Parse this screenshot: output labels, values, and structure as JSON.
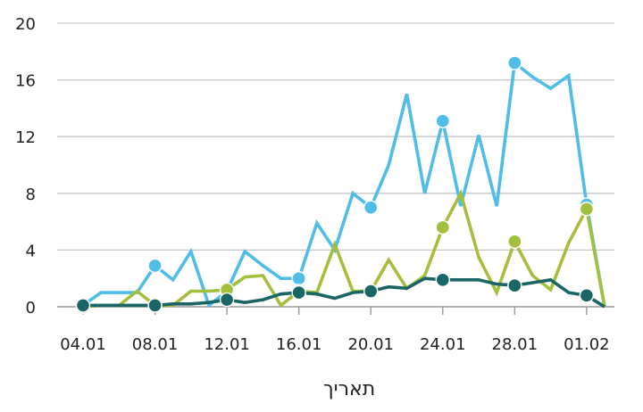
{
  "chart_data": {
    "type": "line",
    "title": "",
    "xlabel": "תאריך",
    "ylabel": "",
    "ylim": [
      0,
      20
    ],
    "y_ticks": [
      0,
      4,
      8,
      12,
      16,
      20
    ],
    "x_ticks": [
      "04.01",
      "08.01",
      "12.01",
      "16.01",
      "20.01",
      "24.01",
      "28.01",
      "01.02"
    ],
    "grid": true,
    "legend": "none",
    "x": [
      "04.01",
      "05.01",
      "06.01",
      "07.01",
      "08.01",
      "09.01",
      "10.01",
      "11.01",
      "12.01",
      "13.01",
      "14.01",
      "15.01",
      "16.01",
      "17.01",
      "18.01",
      "19.01",
      "20.01",
      "21.01",
      "22.01",
      "23.01",
      "24.01",
      "25.01",
      "26.01",
      "27.01",
      "28.01",
      "29.01",
      "30.01",
      "31.01",
      "01.02",
      "02.02"
    ],
    "series": [
      {
        "color": "#4fbde8",
        "values": [
          0.1,
          1.0,
          1.0,
          1.0,
          2.9,
          1.9,
          3.9,
          0.1,
          1.1,
          3.9,
          2.9,
          2.0,
          2.0,
          5.9,
          4.0,
          8.0,
          7.0,
          10.0,
          15.0,
          8.0,
          13.1,
          7.1,
          12.1,
          7.1,
          17.2,
          16.2,
          15.4,
          16.3,
          7.2,
          0.0
        ],
        "markers": [
          0,
          4,
          8,
          12,
          16,
          20,
          24,
          28
        ]
      },
      {
        "color": "#a3bf3d",
        "values": [
          0.0,
          0.1,
          0.1,
          1.1,
          0.1,
          0.1,
          1.1,
          1.1,
          1.2,
          2.1,
          2.2,
          0.1,
          1.1,
          1.0,
          4.4,
          1.1,
          1.1,
          3.3,
          1.3,
          2.2,
          5.6,
          8.0,
          3.5,
          1.0,
          4.6,
          2.2,
          1.2,
          4.5,
          6.9,
          0.0
        ],
        "markers": [
          0,
          4,
          8,
          12,
          16,
          20,
          24,
          28
        ]
      },
      {
        "color": "#1a6566",
        "values": [
          0.1,
          0.1,
          0.1,
          0.1,
          0.1,
          0.2,
          0.2,
          0.3,
          0.5,
          0.3,
          0.5,
          0.9,
          1.0,
          0.9,
          0.6,
          1.0,
          1.1,
          1.4,
          1.3,
          2.0,
          1.9,
          1.9,
          1.9,
          1.6,
          1.5,
          1.7,
          1.9,
          1.0,
          0.8,
          0.0
        ],
        "markers": [
          0,
          4,
          8,
          12,
          16,
          20,
          24,
          28
        ]
      }
    ]
  }
}
